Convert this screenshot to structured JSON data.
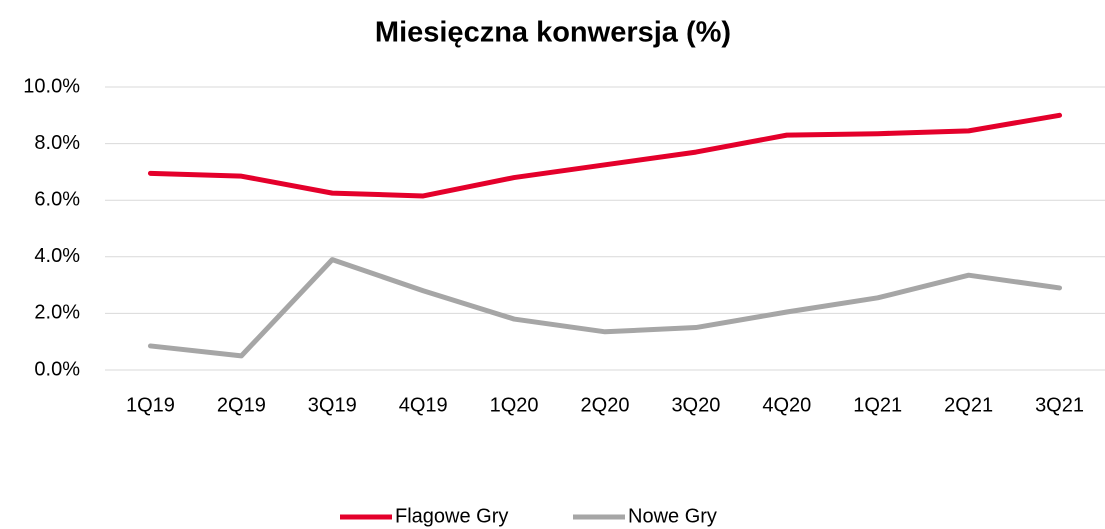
{
  "chart_data": {
    "type": "line",
    "title": "Miesięczna konwersja (%)",
    "categories": [
      "1Q19",
      "2Q19",
      "3Q19",
      "4Q19",
      "1Q20",
      "2Q20",
      "3Q20",
      "4Q20",
      "1Q21",
      "2Q21",
      "3Q21"
    ],
    "series": [
      {
        "name": "Flagowe Gry",
        "color": "#e4002b",
        "values": [
          6.95,
          6.85,
          6.25,
          6.15,
          6.8,
          7.25,
          7.7,
          8.3,
          8.35,
          8.45,
          9.0
        ]
      },
      {
        "name": "Nowe Gry",
        "color": "#a6a6a6",
        "values": [
          0.85,
          0.5,
          3.9,
          2.8,
          1.8,
          1.35,
          1.5,
          2.05,
          2.55,
          3.35,
          2.9
        ]
      }
    ],
    "ylim": [
      0,
      10
    ],
    "yticks": [
      {
        "value": 0,
        "label": "0.0%"
      },
      {
        "value": 2,
        "label": "2.0%"
      },
      {
        "value": 4,
        "label": "4.0%"
      },
      {
        "value": 6,
        "label": "6.0%"
      },
      {
        "value": 8,
        "label": "8.0%"
      },
      {
        "value": 10,
        "label": "10.0%"
      }
    ],
    "grid": true,
    "legend": "bottom"
  }
}
